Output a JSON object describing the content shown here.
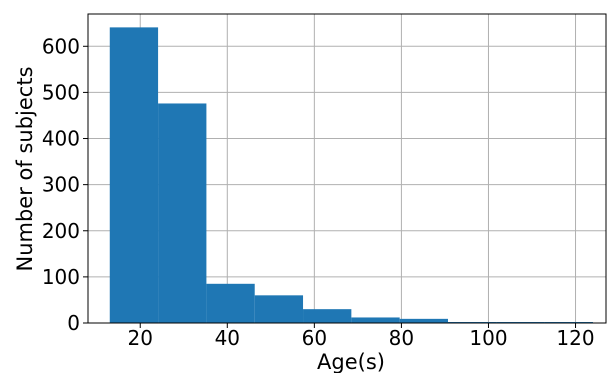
{
  "chart_data": {
    "type": "bar",
    "title": "",
    "xlabel": "Age(s)",
    "ylabel": "Number of subjects",
    "xlim": [
      8,
      127
    ],
    "ylim": [
      0,
      670
    ],
    "x_ticks": [
      20,
      40,
      60,
      80,
      100,
      120
    ],
    "y_ticks": [
      0,
      100,
      200,
      300,
      400,
      500,
      600
    ],
    "grid": true,
    "legend": "none",
    "bins": [
      {
        "start": 13,
        "end": 24.1,
        "value": 641
      },
      {
        "start": 24.1,
        "end": 35.2,
        "value": 476
      },
      {
        "start": 35.2,
        "end": 46.3,
        "value": 85
      },
      {
        "start": 46.3,
        "end": 57.4,
        "value": 60
      },
      {
        "start": 57.4,
        "end": 68.5,
        "value": 30
      },
      {
        "start": 68.5,
        "end": 79.6,
        "value": 12
      },
      {
        "start": 79.6,
        "end": 90.7,
        "value": 9
      },
      {
        "start": 90.7,
        "end": 101.8,
        "value": 1
      },
      {
        "start": 101.8,
        "end": 112.9,
        "value": 1
      },
      {
        "start": 112.9,
        "end": 124,
        "value": 1
      }
    ],
    "colors": {
      "bar": "#1f77b4",
      "grid": "#b0b0b0",
      "axis": "#000000"
    }
  }
}
